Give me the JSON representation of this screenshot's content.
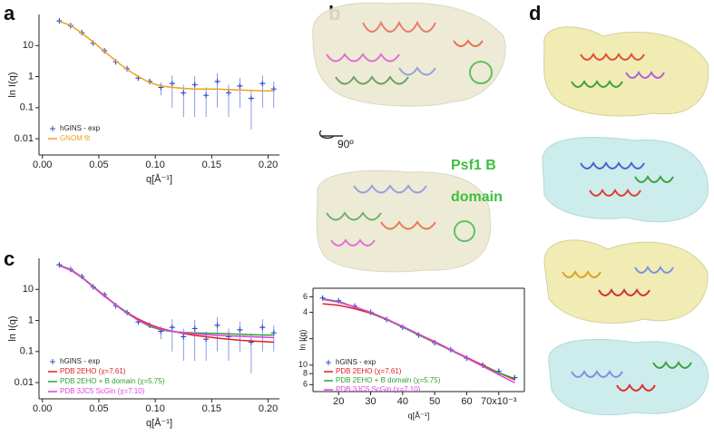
{
  "figure": {
    "letters": [
      "a",
      "b",
      "c",
      "d"
    ],
    "rotation_label": "90º",
    "domain_label": [
      "Psf1 B",
      "domain"
    ]
  },
  "chart_data": [
    {
      "type": "line",
      "log_y": true,
      "legend": "lower left",
      "xlabel": "q[Å⁻¹]",
      "ylabel": "ln I(q)",
      "xlim": [
        -0.003,
        0.21
      ],
      "ylim": [
        0.003,
        100
      ],
      "xticks": [
        {
          "value": 0,
          "label": "0.00"
        },
        {
          "value": 0.05,
          "label": "0.05"
        },
        {
          "value": 0.1,
          "label": "0.10"
        },
        {
          "value": 0.15,
          "label": "0.15"
        },
        {
          "value": 0.2,
          "label": "0.20"
        }
      ],
      "yticks": [
        0.01,
        0.1,
        1,
        10
      ],
      "x": [
        0.015,
        0.025,
        0.035,
        0.045,
        0.055,
        0.065,
        0.075,
        0.085,
        0.095,
        0.105,
        0.115,
        0.125,
        0.135,
        0.145,
        0.155,
        0.165,
        0.175,
        0.185,
        0.195,
        0.205
      ],
      "series": [
        {
          "name": "hGINS - exp",
          "color": "#3050d0",
          "marker": "+",
          "values": [
            62,
            44,
            26,
            12,
            6.8,
            3.0,
            1.8,
            0.9,
            0.7,
            0.45,
            0.6,
            0.3,
            0.55,
            0.25,
            0.7,
            0.3,
            0.5,
            0.2,
            0.6,
            0.4
          ],
          "errors": [
            2,
            1,
            0.5,
            0.3,
            0.2,
            0.1,
            0.1,
            0.1,
            0.1,
            0.2,
            0.5,
            0.25,
            0.5,
            0.2,
            0.6,
            0.25,
            0.4,
            0.18,
            0.5,
            0.3
          ]
        },
        {
          "name": "GNOM fit",
          "color": "#f0a020",
          "values": [
            60,
            45,
            25,
            13,
            6.5,
            3.2,
            1.7,
            1.0,
            0.65,
            0.5,
            0.45,
            0.42,
            0.4,
            0.4,
            0.4,
            0.38,
            0.37,
            0.36,
            0.35,
            0.35
          ]
        }
      ]
    },
    {
      "type": "line",
      "log_y": true,
      "legend": "lower left",
      "xlabel": "q[Å⁻¹]",
      "ylabel": "ln I(q)",
      "xlim": [
        -0.003,
        0.21
      ],
      "ylim": [
        0.003,
        100
      ],
      "xticks": [
        {
          "value": 0,
          "label": "0.00"
        },
        {
          "value": 0.05,
          "label": "0.05"
        },
        {
          "value": 0.1,
          "label": "0.10"
        },
        {
          "value": 0.15,
          "label": "0.15"
        },
        {
          "value": 0.2,
          "label": "0.20"
        }
      ],
      "yticks": [
        0.01,
        0.1,
        1,
        10
      ],
      "x": [
        0.015,
        0.025,
        0.035,
        0.045,
        0.055,
        0.065,
        0.075,
        0.085,
        0.095,
        0.105,
        0.115,
        0.125,
        0.135,
        0.145,
        0.155,
        0.165,
        0.175,
        0.185,
        0.195,
        0.205
      ],
      "series": [
        {
          "name": "hGINS - exp",
          "color": "#3050d0",
          "marker": "+",
          "values": [
            62,
            44,
            26,
            12,
            6.8,
            3.0,
            1.8,
            0.9,
            0.7,
            0.45,
            0.6,
            0.3,
            0.55,
            0.25,
            0.7,
            0.3,
            0.5,
            0.2,
            0.6,
            0.4
          ],
          "errors": [
            2,
            1,
            0.5,
            0.3,
            0.2,
            0.1,
            0.1,
            0.1,
            0.1,
            0.2,
            0.5,
            0.25,
            0.5,
            0.2,
            0.6,
            0.25,
            0.4,
            0.18,
            0.5,
            0.3
          ]
        },
        {
          "name": "PDB 2EHO (χ=7.61)",
          "color": "#e02020",
          "values": [
            58,
            42,
            24,
            12,
            6,
            3.2,
            1.8,
            1.1,
            0.75,
            0.55,
            0.45,
            0.38,
            0.33,
            0.3,
            0.27,
            0.25,
            0.23,
            0.22,
            0.21,
            0.2
          ]
        },
        {
          "name": "PDB 2EHO + B domain (χ=5.75)",
          "color": "#30a030",
          "values": [
            60,
            44,
            25,
            12.5,
            6.3,
            3.2,
            1.8,
            1.0,
            0.65,
            0.5,
            0.44,
            0.41,
            0.4,
            0.39,
            0.38,
            0.37,
            0.36,
            0.35,
            0.34,
            0.34
          ]
        },
        {
          "name": "PDB 3JC5  ScGin (χ=7.10)",
          "color": "#e040e0",
          "values": [
            59,
            43,
            24,
            12,
            6.2,
            3.1,
            1.7,
            1.0,
            0.7,
            0.52,
            0.45,
            0.4,
            0.37,
            0.35,
            0.33,
            0.32,
            0.31,
            0.3,
            0.29,
            0.28
          ]
        }
      ]
    },
    {
      "type": "line",
      "log_y": true,
      "legend": "lower left",
      "xlabel": "q[Å⁻¹]",
      "ylabel": "ln I(q)",
      "xlim": [
        12,
        78
      ],
      "ylim": [
        5,
        75
      ],
      "xticks": [
        20,
        30,
        40,
        50,
        60,
        {
          "value": 70,
          "label": "70x10⁻³"
        }
      ],
      "yticks": [
        {
          "value": 60,
          "label": "6"
        },
        {
          "value": 40,
          "label": "4"
        },
        {
          "value": 20,
          "label": "2"
        },
        10,
        {
          "value": 8,
          "label": "8"
        },
        {
          "value": 6,
          "label": "6"
        }
      ],
      "x": [
        15,
        20,
        25,
        30,
        35,
        40,
        45,
        50,
        55,
        60,
        65,
        70,
        75
      ],
      "series": [
        {
          "name": "hGINS - exp",
          "color": "#3050d0",
          "marker": "+",
          "values": [
            58,
            54,
            47,
            40,
            33,
            27,
            22,
            18,
            15,
            12,
            10,
            8.5,
            7.2
          ]
        },
        {
          "name": "PDB 2EHO (χ=7.61)",
          "color": "#e02020",
          "values": [
            50,
            48,
            44,
            39,
            33,
            27.5,
            22.5,
            18.5,
            15,
            12.2,
            10,
            8.2,
            6.8
          ]
        },
        {
          "name": "PDB 2EHO + B domain (χ=5.75)",
          "color": "#30a030",
          "values": [
            57,
            53,
            46,
            39.5,
            33,
            27,
            22,
            18,
            14.8,
            12,
            9.8,
            8.2,
            7
          ]
        },
        {
          "name": "PDB 3JC5  ScGin (χ=7.10)",
          "color": "#e040e0",
          "values": [
            56,
            52,
            46,
            40,
            33.5,
            27.5,
            22.5,
            18.3,
            15,
            12,
            9.7,
            7.8,
            6.3
          ]
        }
      ]
    }
  ]
}
